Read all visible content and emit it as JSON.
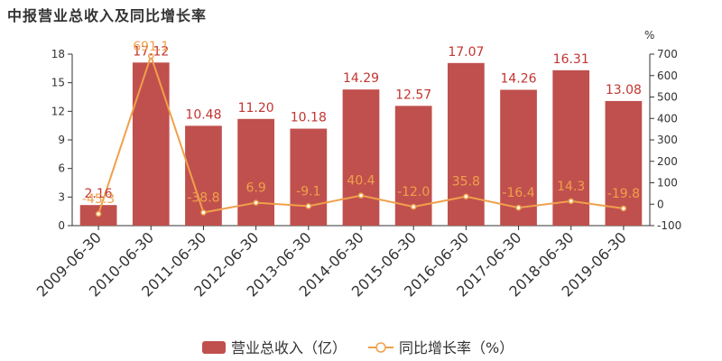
{
  "chart_data": {
    "type": "bar+line",
    "title": "中报营业总收入及同比增长率",
    "categories": [
      "2009-06-30",
      "2010-06-30",
      "2011-06-30",
      "2012-06-30",
      "2013-06-30",
      "2014-06-30",
      "2015-06-30",
      "2016-06-30",
      "2017-06-30",
      "2018-06-30",
      "2019-06-30"
    ],
    "series": [
      {
        "name": "营业总收入（亿）",
        "type": "bar",
        "axis": "left",
        "color": "#c0504d",
        "values": [
          2.16,
          17.12,
          10.48,
          11.2,
          10.18,
          14.29,
          12.57,
          17.07,
          14.26,
          16.31,
          13.08
        ],
        "labels": [
          "2.16",
          "17.12",
          "10.48",
          "11.20",
          "10.18",
          "14.29",
          "12.57",
          "17.07",
          "14.26",
          "16.31",
          "13.08"
        ]
      },
      {
        "name": "同比增长率（%）",
        "type": "line",
        "axis": "right",
        "color": "#f0a04b",
        "values": [
          -45.3,
          691.1,
          -38.8,
          6.9,
          -9.1,
          40.4,
          -12.0,
          35.8,
          -16.4,
          14.3,
          -19.8
        ],
        "labels": [
          "-45.3",
          "691.1",
          "-38.8",
          "6.9",
          "-9.1",
          "40.4",
          "-12.0",
          "35.8",
          "-16.4",
          "14.3",
          "-19.8"
        ]
      }
    ],
    "y_left": {
      "min": 0,
      "max": 18,
      "ticks": [
        "0",
        "3",
        "6",
        "9",
        "12",
        "15",
        "18"
      ]
    },
    "y_right": {
      "min": -100,
      "max": 700,
      "unit": "%",
      "ticks": [
        "-100",
        "0",
        "100",
        "200",
        "300",
        "400",
        "500",
        "600",
        "700"
      ]
    },
    "legend": {
      "position": "bottom-center",
      "bar_label": "营业总收入（亿）",
      "line_label": "同比增长率（%）"
    }
  }
}
